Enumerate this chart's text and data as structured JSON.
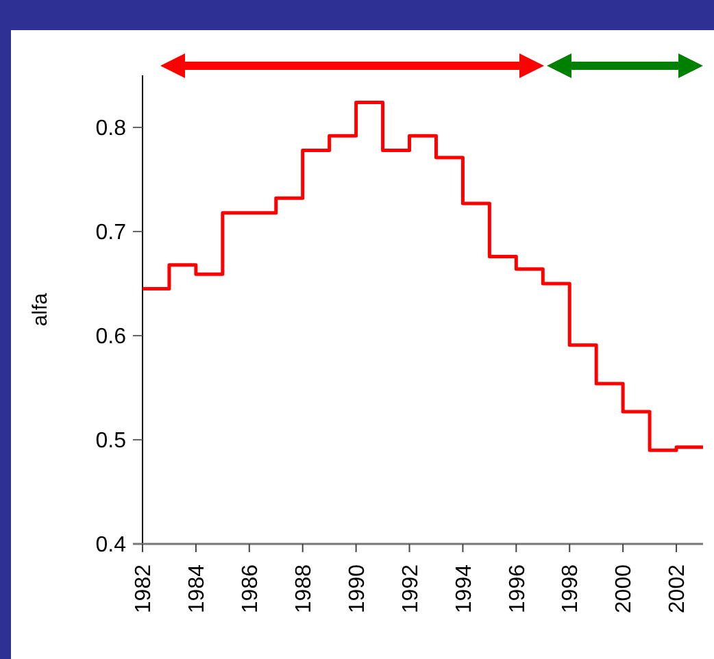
{
  "chart_data": {
    "type": "step",
    "ylabel": "alfa",
    "x": [
      1982,
      1983,
      1984,
      1985,
      1986,
      1987,
      1988,
      1989,
      1990,
      1991,
      1992,
      1993,
      1994,
      1995,
      1996,
      1997,
      1998,
      1999,
      2000,
      2001,
      2002,
      2003
    ],
    "series": [
      {
        "color": "#ff0000",
        "values": [
          0.645,
          0.668,
          0.659,
          0.718,
          0.718,
          0.732,
          0.778,
          0.792,
          0.824,
          0.778,
          0.792,
          0.771,
          0.727,
          0.676,
          0.664,
          0.65,
          0.591,
          0.554,
          0.527,
          0.49,
          0.493,
          0.493
        ]
      }
    ],
    "xlim": [
      1982,
      2003
    ],
    "xticks": [
      1982,
      1984,
      1986,
      1988,
      1990,
      1992,
      1994,
      1996,
      1998,
      2000,
      2002
    ],
    "ylim": [
      0.4,
      0.85
    ],
    "yticks": [
      0.4,
      0.5,
      0.6,
      0.7,
      0.8
    ],
    "grid": false,
    "marker": "none",
    "line_style": "solid"
  }
}
